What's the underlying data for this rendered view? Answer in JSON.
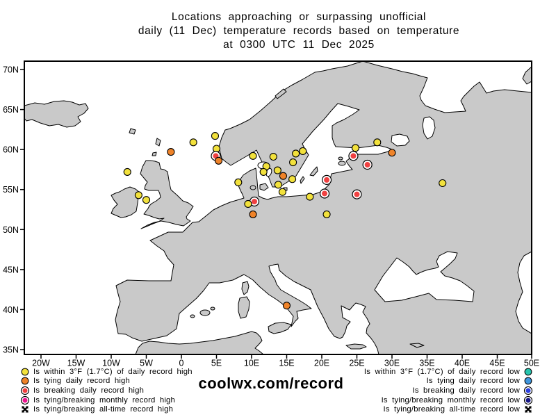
{
  "title": {
    "lines": [
      "Locations approaching or surpassing unofficial",
      "daily (11 Dec) temperature records based on temperature",
      "at 0300 UTC 11 Dec 2025"
    ]
  },
  "watermark": {
    "text": "coolwx.com/record"
  },
  "axes": {
    "lat_labels": [
      "70N",
      "65N",
      "60N",
      "55N",
      "50N",
      "45N",
      "40N",
      "35N"
    ],
    "lat_values": [
      70,
      65,
      60,
      55,
      50,
      45,
      40,
      35
    ],
    "lon_labels": [
      "20W",
      "15W",
      "10W",
      "5W",
      "0",
      "5E",
      "10E",
      "15E",
      "20E",
      "25E",
      "30E",
      "35E",
      "40E",
      "45E",
      "50E"
    ],
    "lon_values": [
      -20,
      -15,
      -10,
      -5,
      0,
      5,
      10,
      15,
      20,
      25,
      30,
      35,
      40,
      45,
      50
    ]
  },
  "colors": {
    "land": "#c9c9c9",
    "sea": "#ffffff",
    "coastline": "#000000"
  },
  "markers": {
    "within_high": {
      "color": "#f2e13c"
    },
    "tying_high": {
      "color": "#ef8329"
    },
    "breaking_high": {
      "color": "#f04141",
      "ring": true
    },
    "monthly_high": {
      "color": "#ee1390",
      "ring": true
    },
    "alltime_high": {
      "color": "#000000",
      "star": true
    },
    "within_low": {
      "color": "#27c5ae"
    },
    "tying_low": {
      "color": "#3f96dd"
    },
    "breaking_low": {
      "color": "#2b3fe0",
      "ring": true
    },
    "monthly_low": {
      "color": "#191987",
      "ring": true
    },
    "alltime_low": {
      "color": "#000000",
      "star": true
    }
  },
  "legend_left": {
    "items": [
      {
        "marker": "within_high",
        "label": "Is within 3°F (1.7°C) of daily record high"
      },
      {
        "marker": "tying_high",
        "label": "Is tying daily record high"
      },
      {
        "marker": "breaking_high",
        "label": "Is breaking daily record high"
      },
      {
        "marker": "monthly_high",
        "label": "Is tying/breaking monthly record high"
      },
      {
        "marker": "alltime_high",
        "label": "Is tying/breaking all-time record high"
      }
    ]
  },
  "legend_right": {
    "items": [
      {
        "marker": "within_low",
        "label": "Is within 3°F (1.7°C) of daily record low"
      },
      {
        "marker": "tying_low",
        "label": "Is tying daily record low"
      },
      {
        "marker": "breaking_low",
        "label": "Is breaking daily record low"
      },
      {
        "marker": "monthly_low",
        "label": "Is tying/breaking monthly record low"
      },
      {
        "marker": "alltime_low",
        "label": "Is tying/breaking all-time record low"
      }
    ]
  },
  "chart_data": {
    "type": "scatter",
    "title": "Locations approaching or surpassing unofficial daily (11 Dec) temperature records based on temperature at 0300 UTC 11 Dec 2025",
    "projection": "equirectangular",
    "lon_range": [
      -22.4,
      49.9
    ],
    "lat_range": [
      34.4,
      71.0
    ],
    "grid": false,
    "points": [
      {
        "lon": 4.8,
        "lat": 61.7,
        "marker": "within_high"
      },
      {
        "lon": 1.7,
        "lat": 60.9,
        "marker": "within_high"
      },
      {
        "lon": -1.5,
        "lat": 59.7,
        "marker": "tying_high"
      },
      {
        "lon": 5.0,
        "lat": 60.1,
        "marker": "within_high"
      },
      {
        "lon": 4.9,
        "lat": 59.2,
        "marker": "breaking_high"
      },
      {
        "lon": 5.3,
        "lat": 58.6,
        "marker": "tying_high"
      },
      {
        "lon": -7.7,
        "lat": 57.2,
        "marker": "within_high"
      },
      {
        "lon": -6.1,
        "lat": 54.3,
        "marker": "within_high"
      },
      {
        "lon": -5.0,
        "lat": 53.7,
        "marker": "within_high"
      },
      {
        "lon": 10.2,
        "lat": 59.2,
        "marker": "within_high"
      },
      {
        "lon": 13.1,
        "lat": 59.1,
        "marker": "within_high"
      },
      {
        "lon": 16.3,
        "lat": 59.5,
        "marker": "within_high"
      },
      {
        "lon": 17.3,
        "lat": 59.8,
        "marker": "within_high"
      },
      {
        "lon": 15.9,
        "lat": 58.4,
        "marker": "within_high"
      },
      {
        "lon": 12.1,
        "lat": 57.9,
        "marker": "within_high"
      },
      {
        "lon": 11.7,
        "lat": 57.2,
        "marker": "within_high"
      },
      {
        "lon": 13.7,
        "lat": 57.4,
        "marker": "within_high"
      },
      {
        "lon": 14.5,
        "lat": 56.7,
        "marker": "tying_high"
      },
      {
        "lon": 15.8,
        "lat": 56.3,
        "marker": "within_high"
      },
      {
        "lon": 13.8,
        "lat": 55.6,
        "marker": "within_high"
      },
      {
        "lon": 14.4,
        "lat": 54.7,
        "marker": "within_high"
      },
      {
        "lon": 8.1,
        "lat": 55.9,
        "marker": "within_high"
      },
      {
        "lon": 10.4,
        "lat": 53.5,
        "marker": "breaking_high"
      },
      {
        "lon": 9.5,
        "lat": 53.2,
        "marker": "within_high"
      },
      {
        "lon": 10.2,
        "lat": 51.9,
        "marker": "tying_high"
      },
      {
        "lon": 18.3,
        "lat": 54.1,
        "marker": "within_high"
      },
      {
        "lon": 20.7,
        "lat": 51.9,
        "marker": "within_high"
      },
      {
        "lon": 20.7,
        "lat": 56.2,
        "marker": "breaking_high"
      },
      {
        "lon": 20.4,
        "lat": 54.5,
        "marker": "breaking_high"
      },
      {
        "lon": 25.0,
        "lat": 54.4,
        "marker": "breaking_high"
      },
      {
        "lon": 27.9,
        "lat": 60.9,
        "marker": "within_high"
      },
      {
        "lon": 24.8,
        "lat": 60.2,
        "marker": "within_high"
      },
      {
        "lon": 24.5,
        "lat": 59.2,
        "marker": "breaking_high"
      },
      {
        "lon": 30.0,
        "lat": 59.6,
        "marker": "tying_high"
      },
      {
        "lon": 26.5,
        "lat": 58.1,
        "marker": "breaking_high"
      },
      {
        "lon": 37.2,
        "lat": 55.8,
        "marker": "within_high"
      },
      {
        "lon": 15.0,
        "lat": 40.5,
        "marker": "tying_high"
      }
    ]
  }
}
